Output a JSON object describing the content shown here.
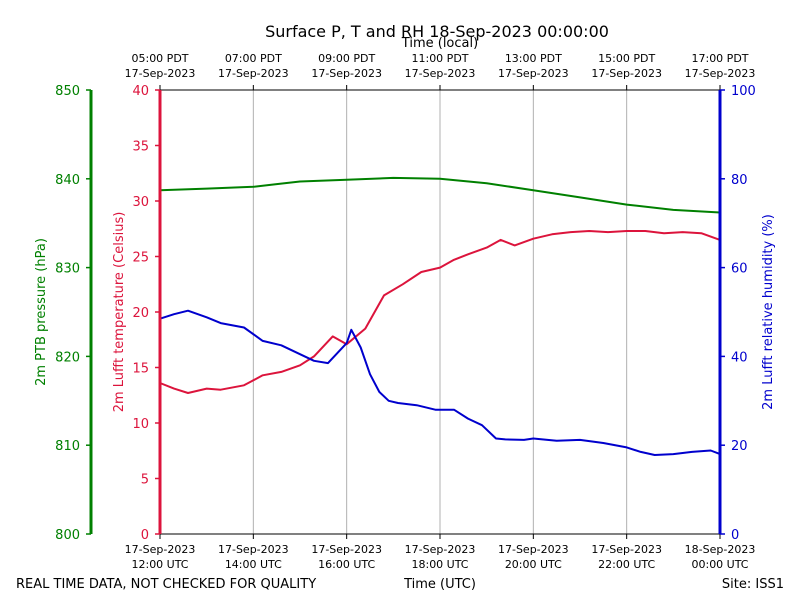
{
  "chart_data": {
    "type": "line",
    "title": "Surface P, T and RH 18-Sep-2023 00:00:00",
    "top_axis_label": "Time (local)",
    "bottom_axis_label": "Time (UTC)",
    "footer_left": "REAL TIME DATA, NOT CHECKED FOR QUALITY",
    "footer_right": "Site: ISS1",
    "x_range_hours_utc": [
      12,
      24
    ],
    "grid": "vertical",
    "top_ticks": [
      {
        "x": 12,
        "time": "05:00 PDT",
        "date": "17-Sep-2023"
      },
      {
        "x": 14,
        "time": "07:00 PDT",
        "date": "17-Sep-2023"
      },
      {
        "x": 16,
        "time": "09:00 PDT",
        "date": "17-Sep-2023"
      },
      {
        "x": 18,
        "time": "11:00 PDT",
        "date": "17-Sep-2023"
      },
      {
        "x": 20,
        "time": "13:00 PDT",
        "date": "17-Sep-2023"
      },
      {
        "x": 22,
        "time": "15:00 PDT",
        "date": "17-Sep-2023"
      },
      {
        "x": 24,
        "time": "17:00 PDT",
        "date": "17-Sep-2023"
      }
    ],
    "bottom_ticks": [
      {
        "x": 12,
        "date": "17-Sep-2023",
        "time": "12:00 UTC"
      },
      {
        "x": 14,
        "date": "17-Sep-2023",
        "time": "14:00 UTC"
      },
      {
        "x": 16,
        "date": "17-Sep-2023",
        "time": "16:00 UTC"
      },
      {
        "x": 18,
        "date": "17-Sep-2023",
        "time": "18:00 UTC"
      },
      {
        "x": 20,
        "date": "17-Sep-2023",
        "time": "20:00 UTC"
      },
      {
        "x": 22,
        "date": "17-Sep-2023",
        "time": "22:00 UTC"
      },
      {
        "x": 24,
        "date": "18-Sep-2023",
        "time": "00:00 UTC"
      }
    ],
    "axes": {
      "pressure": {
        "label": "2m PTB pressure (hPa)",
        "color": "#008000",
        "ylim": [
          800,
          850
        ],
        "ticks": [
          "800",
          "810",
          "820",
          "830",
          "840",
          "850"
        ]
      },
      "temperature": {
        "label": "2m Lufft temperature (Celsius)",
        "color": "#dc143c",
        "ylim": [
          0,
          40
        ],
        "ticks": [
          "0",
          "5",
          "10",
          "15",
          "20",
          "25",
          "30",
          "35",
          "40"
        ]
      },
      "humidity": {
        "label": "2m Lufft relative humidity (%)",
        "color": "#0000cd",
        "ylim": [
          0,
          100
        ],
        "ticks": [
          "0",
          "20",
          "40",
          "60",
          "80",
          "100"
        ]
      }
    },
    "series": [
      {
        "axis": "pressure",
        "color": "#008000",
        "x": [
          12.0,
          13.0,
          14.0,
          14.5,
          15.0,
          16.0,
          17.0,
          18.0,
          19.0,
          20.0,
          21.0,
          22.0,
          23.0,
          24.0
        ],
        "y": [
          838.7,
          838.9,
          839.1,
          839.4,
          839.7,
          839.9,
          840.1,
          840.0,
          839.5,
          838.7,
          837.9,
          837.1,
          836.5,
          836.2
        ]
      },
      {
        "axis": "temperature",
        "color": "#dc143c",
        "x": [
          12.0,
          12.3,
          12.6,
          13.0,
          13.3,
          13.8,
          14.2,
          14.6,
          15.0,
          15.3,
          15.7,
          16.0,
          16.4,
          16.8,
          17.2,
          17.6,
          18.0,
          18.3,
          18.6,
          19.0,
          19.3,
          19.6,
          20.0,
          20.4,
          20.8,
          21.2,
          21.6,
          22.0,
          22.4,
          22.8,
          23.2,
          23.6,
          24.0
        ],
        "y": [
          13.6,
          13.1,
          12.7,
          13.1,
          13.0,
          13.4,
          14.3,
          14.6,
          15.2,
          16.0,
          17.8,
          17.1,
          18.5,
          21.5,
          22.5,
          23.6,
          24.0,
          24.7,
          25.2,
          25.8,
          26.5,
          26.0,
          26.6,
          27.0,
          27.2,
          27.3,
          27.2,
          27.3,
          27.3,
          27.1,
          27.2,
          27.1,
          26.5
        ]
      },
      {
        "axis": "humidity",
        "color": "#0000cd",
        "x": [
          12.0,
          12.3,
          12.6,
          13.0,
          13.3,
          13.8,
          14.2,
          14.6,
          15.0,
          15.3,
          15.6,
          16.0,
          16.1,
          16.3,
          16.5,
          16.7,
          16.9,
          17.1,
          17.5,
          17.9,
          18.3,
          18.6,
          18.9,
          19.2,
          19.4,
          19.8,
          20.0,
          20.5,
          21.0,
          21.5,
          22.0,
          22.3,
          22.6,
          23.0,
          23.4,
          23.8,
          24.0
        ],
        "y": [
          48.5,
          49.5,
          50.3,
          48.8,
          47.5,
          46.5,
          43.5,
          42.5,
          40.5,
          39.0,
          38.5,
          43.0,
          46.0,
          42.0,
          36.0,
          32.0,
          30.0,
          29.5,
          29.0,
          28.0,
          28.0,
          26.0,
          24.5,
          21.5,
          21.3,
          21.2,
          21.5,
          21.0,
          21.2,
          20.5,
          19.5,
          18.5,
          17.8,
          18.0,
          18.5,
          18.8,
          18.0
        ]
      }
    ]
  }
}
